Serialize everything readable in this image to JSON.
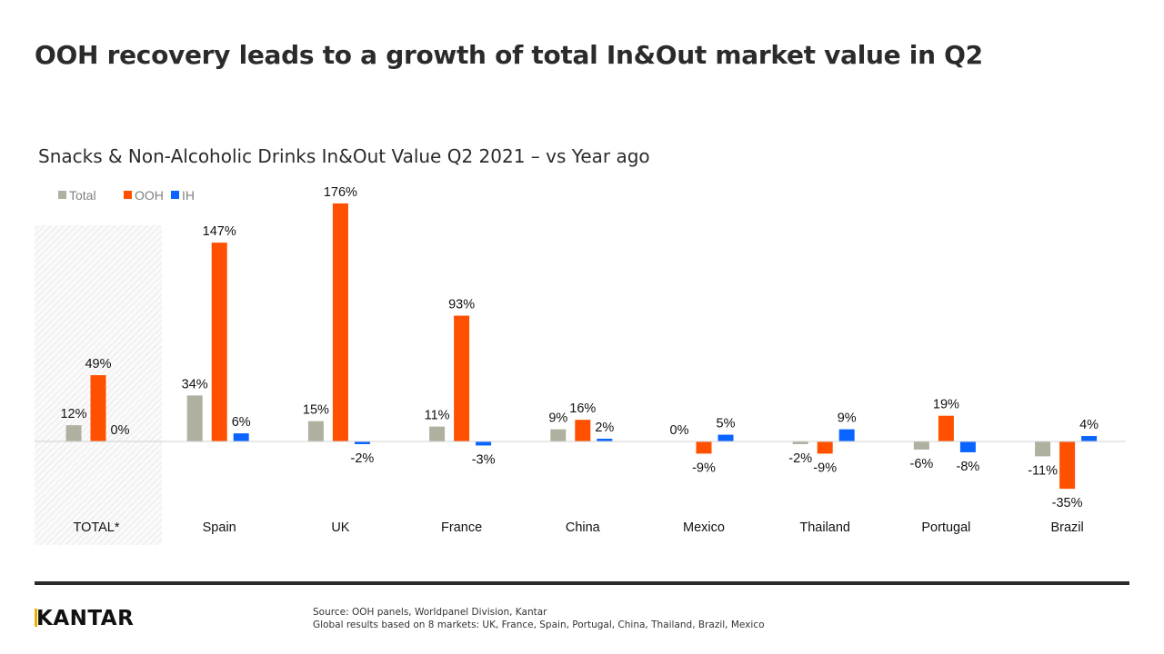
{
  "title": "OOH recovery leads to a growth of total In&Out market value in Q2",
  "chart_data": {
    "type": "bar",
    "title": "Snacks & Non-Alcoholic Drinks In&Out Value Q2 2021 – vs Year ago",
    "categories": [
      "TOTAL*",
      "Spain",
      "UK",
      "France",
      "China",
      "Mexico",
      "Thailand",
      "Portugal",
      "Brazil"
    ],
    "series": [
      {
        "name": "Total",
        "color": "#b0b0a0",
        "values": [
          12,
          34,
          15,
          11,
          9,
          0,
          -2,
          -6,
          -11
        ]
      },
      {
        "name": "OOH",
        "color": "#ff5000",
        "values": [
          49,
          147,
          176,
          93,
          16,
          -9,
          -9,
          19,
          -35
        ]
      },
      {
        "name": "IH",
        "color": "#0a64ff",
        "values": [
          0,
          6,
          -2,
          -3,
          2,
          5,
          9,
          -8,
          4
        ]
      }
    ],
    "value_format": "percent",
    "legend": "top-left",
    "grid": false,
    "highlighted_category": "TOTAL*"
  },
  "footer": {
    "logo": "KANTAR",
    "source_line1": "Source: OOH panels, Worldpanel Division, Kantar",
    "source_line2": "Global results based on 8 markets: UK, France, Spain,  Portugal, China, Thailand,  Brazil, Mexico"
  }
}
